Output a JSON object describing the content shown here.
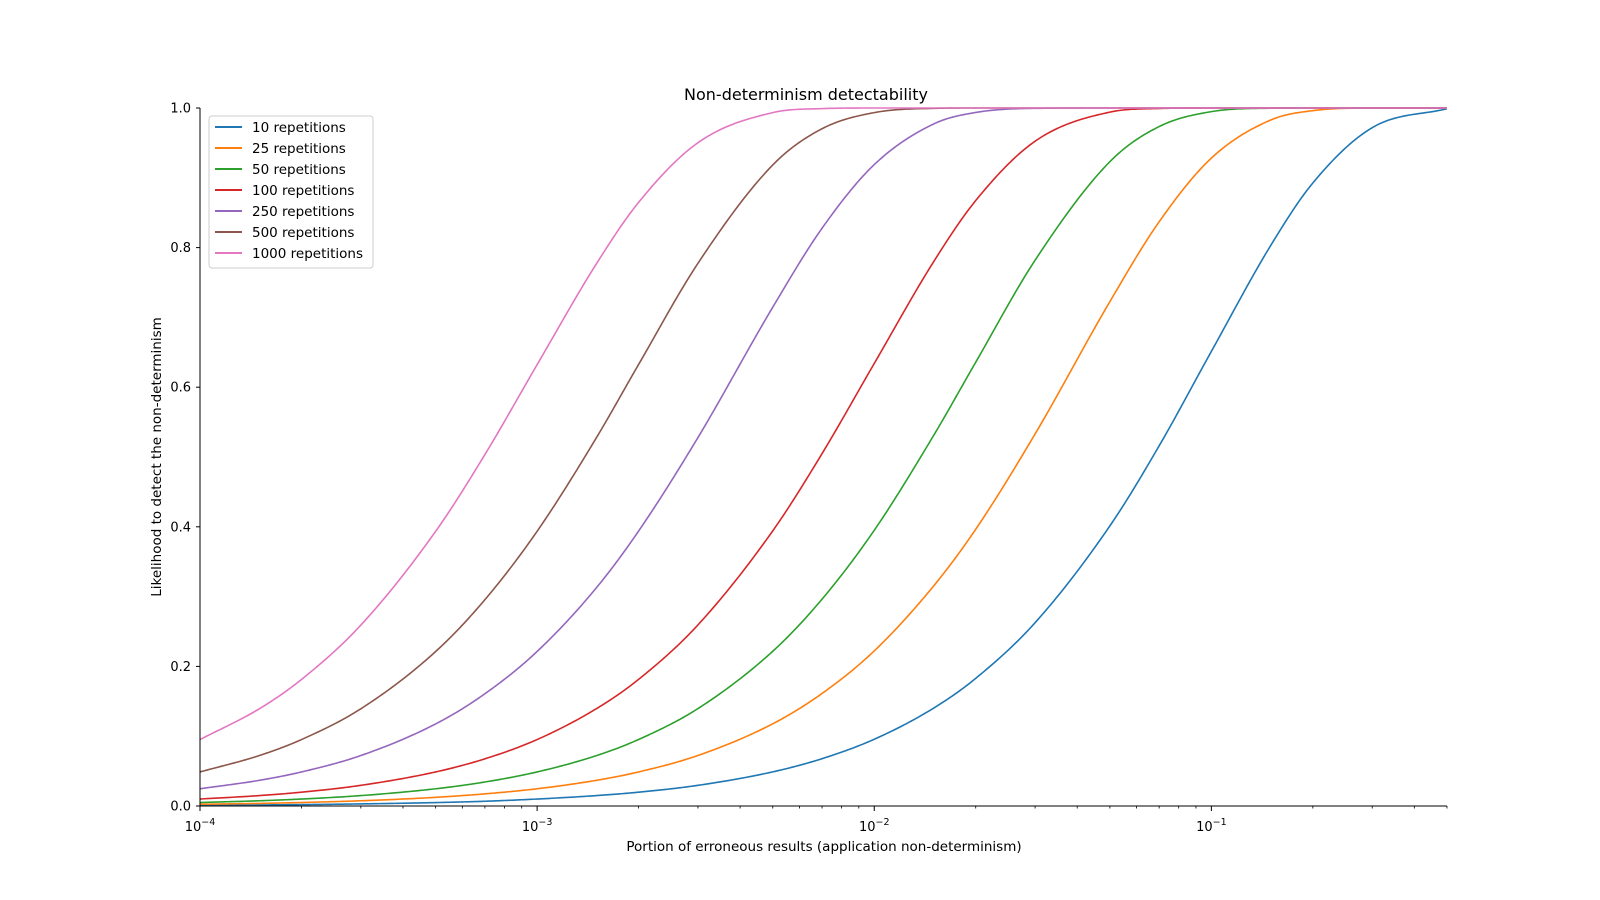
{
  "chart_data": {
    "type": "line",
    "title": "Non-determinism detectability",
    "xlabel": "Portion of erroneous results (application non-determinism)",
    "ylabel": "Likelihood to detect the non-determinism",
    "xscale": "log",
    "xlim": [
      0.0001,
      0.5
    ],
    "ylim": [
      0.0,
      1.0
    ],
    "grid": false,
    "legend_position": "top-left",
    "x_ticks": [
      {
        "value": 0.0001,
        "base": "10",
        "exp": "−4"
      },
      {
        "value": 0.001,
        "base": "10",
        "exp": "−3"
      },
      {
        "value": 0.01,
        "base": "10",
        "exp": "−2"
      },
      {
        "value": 0.1,
        "base": "10",
        "exp": "−1"
      }
    ],
    "y_ticks": [
      {
        "value": 0.0,
        "label": "0.0"
      },
      {
        "value": 0.2,
        "label": "0.2"
      },
      {
        "value": 0.4,
        "label": "0.4"
      },
      {
        "value": 0.6,
        "label": "0.6"
      },
      {
        "value": 0.8,
        "label": "0.8"
      },
      {
        "value": 1.0,
        "label": "1.0"
      }
    ],
    "x": [
      0.0001,
      0.00015,
      0.0002,
      0.0003,
      0.0005,
      0.0007,
      0.001,
      0.0015,
      0.002,
      0.003,
      0.005,
      0.007,
      0.01,
      0.015,
      0.02,
      0.03,
      0.05,
      0.07,
      0.1,
      0.15,
      0.2,
      0.3,
      0.5
    ],
    "series": [
      {
        "name": "10 repetitions",
        "color": "#1f77b4",
        "values": [
          0.001,
          0.0015,
          0.002,
          0.003,
          0.0049,
          0.0068,
          0.01,
          0.0149,
          0.0198,
          0.0296,
          0.0489,
          0.0678,
          0.0956,
          0.1402,
          0.1829,
          0.2626,
          0.4013,
          0.516,
          0.6513,
          0.8031,
          0.8926,
          0.9718,
          0.999
        ]
      },
      {
        "name": "25 repetitions",
        "color": "#ff7f0e",
        "values": [
          0.0025,
          0.0037,
          0.005,
          0.0075,
          0.0124,
          0.0174,
          0.0247,
          0.0368,
          0.0488,
          0.0724,
          0.1178,
          0.1612,
          0.2222,
          0.3152,
          0.3965,
          0.533,
          0.7226,
          0.837,
          0.9282,
          0.9828,
          0.9962,
          0.9999,
          1.0
        ]
      },
      {
        "name": "50 repetitions",
        "color": "#2ca02c",
        "values": [
          0.005,
          0.0075,
          0.01,
          0.0149,
          0.0247,
          0.0344,
          0.0488,
          0.0722,
          0.0953,
          0.1396,
          0.2217,
          0.2963,
          0.395,
          0.5308,
          0.6358,
          0.7819,
          0.9231,
          0.9734,
          0.9948,
          0.9997,
          1.0,
          1.0,
          1.0
        ]
      },
      {
        "name": "100 repetitions",
        "color": "#d62728",
        "values": [
          0.01,
          0.0149,
          0.0198,
          0.0296,
          0.0488,
          0.0676,
          0.0952,
          0.1395,
          0.1814,
          0.2595,
          0.3942,
          0.5048,
          0.634,
          0.7797,
          0.8674,
          0.9524,
          0.9941,
          0.9993,
          1.0,
          1.0,
          1.0,
          1.0,
          1.0
        ]
      },
      {
        "name": "250 repetitions",
        "color": "#9467bd",
        "values": [
          0.0247,
          0.0368,
          0.0488,
          0.0723,
          0.1176,
          0.1608,
          0.2214,
          0.3128,
          0.3939,
          0.5279,
          0.7146,
          0.8277,
          0.9189,
          0.9771,
          0.9936,
          0.9995,
          1.0,
          1.0,
          1.0,
          1.0,
          1.0,
          1.0,
          1.0
        ]
      },
      {
        "name": "500 repetitions",
        "color": "#8c564b",
        "values": [
          0.0488,
          0.0723,
          0.0952,
          0.1393,
          0.2213,
          0.2956,
          0.3936,
          0.5278,
          0.6326,
          0.7775,
          0.9184,
          0.9703,
          0.9934,
          0.9995,
          1.0,
          1.0,
          1.0,
          1.0,
          1.0,
          1.0,
          1.0,
          1.0,
          1.0
        ]
      },
      {
        "name": "1000 repetitions",
        "color": "#e377c2",
        "values": [
          0.0952,
          0.1393,
          0.1813,
          0.2592,
          0.3935,
          0.5035,
          0.6323,
          0.777,
          0.8648,
          0.9503,
          0.9934,
          0.9991,
          1.0,
          1.0,
          1.0,
          1.0,
          1.0,
          1.0,
          1.0,
          1.0,
          1.0,
          1.0,
          1.0
        ]
      }
    ]
  }
}
